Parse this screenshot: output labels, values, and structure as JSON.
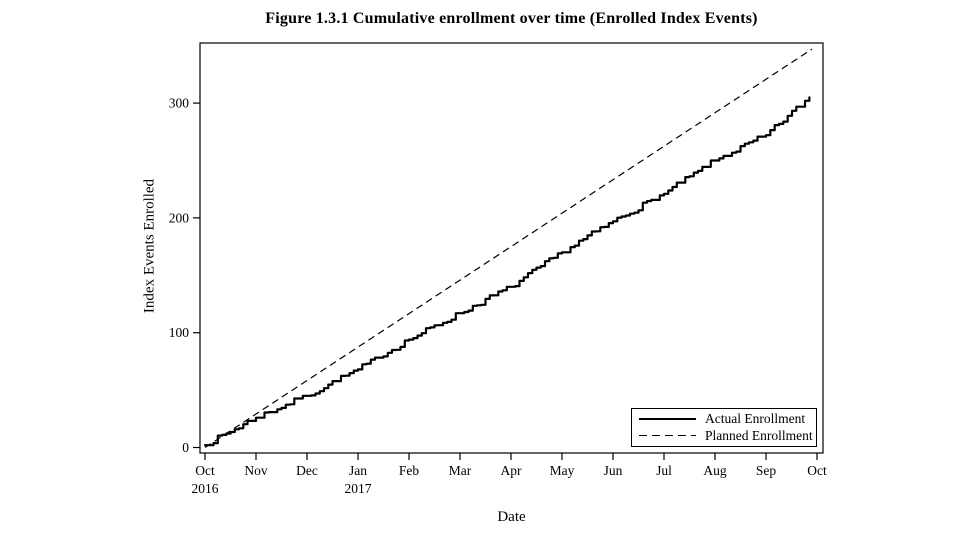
{
  "chart_data": {
    "type": "line",
    "title": "Figure 1.3.1 Cumulative enrollment over time (Enrolled Index Events)",
    "xlabel": "Date",
    "ylabel": "Index Events Enrolled",
    "x_tick_labels": [
      "Oct",
      "Nov",
      "Dec",
      "Jan",
      "Feb",
      "Mar",
      "Apr",
      "May",
      "Jun",
      "Jul",
      "Aug",
      "Sep",
      "Oct"
    ],
    "x_year_labels": [
      {
        "tick_index": 0,
        "label": "2016"
      },
      {
        "tick_index": 3,
        "label": "2017"
      }
    ],
    "y_ticks": [
      0,
      100,
      200,
      300
    ],
    "ylim": [
      0,
      360
    ],
    "x_range_months": [
      0,
      12.2
    ],
    "grid": false,
    "legend_position": "bottom-right",
    "series": [
      {
        "name": "Actual Enrollment",
        "line_style": "solid",
        "shape": "stepped",
        "x_months": [
          0,
          1,
          2,
          3,
          4,
          5,
          6,
          7,
          8,
          9,
          10,
          11,
          11.85
        ],
        "values": [
          2,
          26,
          45,
          68,
          94,
          117,
          140,
          170,
          197,
          221,
          250,
          272,
          305
        ]
      },
      {
        "name": "Planned Enrollment",
        "line_style": "dashed",
        "shape": "straight",
        "x_months": [
          0,
          11.9
        ],
        "values": [
          0,
          347
        ]
      }
    ]
  },
  "colors": {
    "foreground": "#000000",
    "background": "#ffffff"
  }
}
